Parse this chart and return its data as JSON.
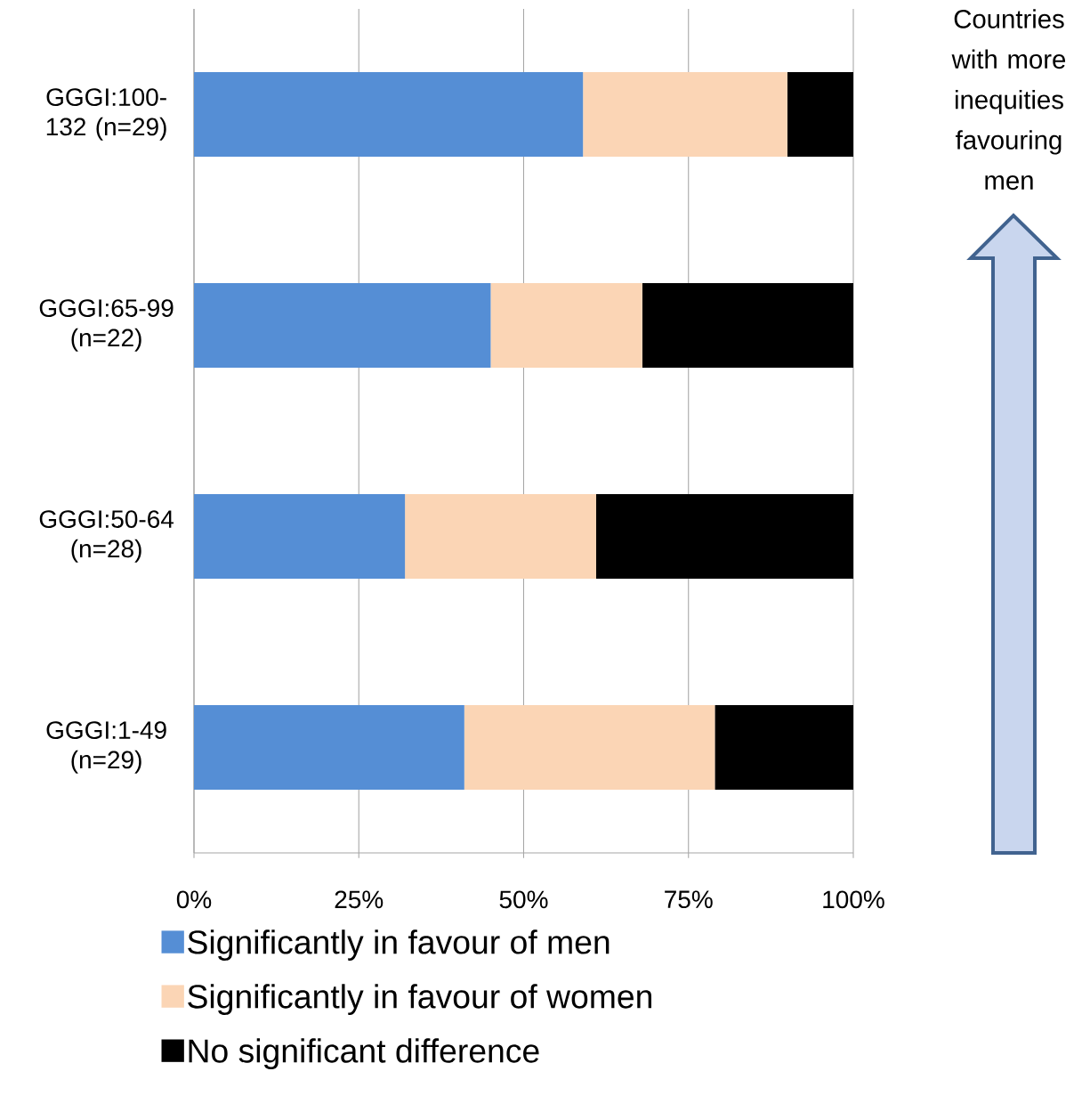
{
  "chart_data": {
    "type": "bar",
    "orientation": "horizontal",
    "stacked": true,
    "categories": [
      "GGGI:100-132 (n=29)",
      "GGGI:65-99 (n=22)",
      "GGGI:50-64 (n=28)",
      "GGGI:1-49 (n=29)"
    ],
    "series": [
      {
        "name": "Significantly in favour of men",
        "color": "#558ed5",
        "values": [
          59,
          45,
          32,
          41
        ]
      },
      {
        "name": "Significantly in favour of women",
        "color": "#fbd5b5",
        "values": [
          31,
          23,
          29,
          38
        ]
      },
      {
        "name": "No significant difference",
        "color": "#000000",
        "values": [
          10,
          32,
          39,
          21
        ]
      }
    ],
    "xlim": [
      0,
      100
    ],
    "xticks": [
      {
        "value": 0,
        "label": "0%"
      },
      {
        "value": 25,
        "label": "25%"
      },
      {
        "value": 50,
        "label": "50%"
      },
      {
        "value": 75,
        "label": "75%"
      },
      {
        "value": 100,
        "label": "100%"
      }
    ],
    "grid": "x",
    "legend": "bottom",
    "annotations": [
      "Countries with more inequities favouring men"
    ]
  }
}
